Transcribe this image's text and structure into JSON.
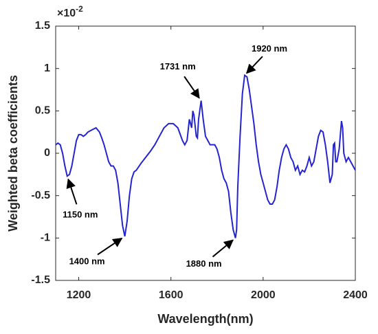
{
  "chart_data": {
    "type": "line",
    "xlabel": "Wavelength(nm)",
    "ylabel": "Weighted beta coefficients",
    "multiplier_base": "×10",
    "multiplier_exponent": "-2",
    "color": "#2323d2",
    "xlim": [
      1100,
      2400
    ],
    "xticks": [
      1200,
      1600,
      2000,
      2400
    ],
    "ylim": [
      -1.5,
      1.5
    ],
    "yticks": [
      -1.5,
      -1,
      -0.5,
      0,
      0.5,
      1,
      1.5
    ],
    "x": [
      1100,
      1110,
      1120,
      1130,
      1140,
      1150,
      1160,
      1170,
      1180,
      1190,
      1200,
      1210,
      1220,
      1230,
      1240,
      1260,
      1275,
      1290,
      1300,
      1310,
      1320,
      1330,
      1340,
      1350,
      1360,
      1370,
      1380,
      1390,
      1400,
      1410,
      1420,
      1430,
      1440,
      1450,
      1470,
      1490,
      1510,
      1530,
      1550,
      1570,
      1590,
      1610,
      1630,
      1650,
      1660,
      1670,
      1680,
      1690,
      1695,
      1700,
      1710,
      1715,
      1720,
      1731,
      1740,
      1750,
      1760,
      1770,
      1780,
      1790,
      1800,
      1810,
      1820,
      1830,
      1840,
      1850,
      1860,
      1870,
      1880,
      1885,
      1890,
      1900,
      1910,
      1920,
      1930,
      1940,
      1950,
      1960,
      1970,
      1980,
      1990,
      2000,
      2010,
      2020,
      2030,
      2040,
      2050,
      2060,
      2070,
      2080,
      2090,
      2100,
      2110,
      2120,
      2130,
      2140,
      2150,
      2160,
      2170,
      2180,
      2190,
      2200,
      2210,
      2220,
      2230,
      2240,
      2250,
      2260,
      2270,
      2280,
      2290,
      2300,
      2305,
      2310,
      2315,
      2320,
      2330,
      2340,
      2345,
      2350,
      2360,
      2370,
      2380,
      2390,
      2400
    ],
    "values": [
      0.1,
      0.12,
      0.1,
      0.0,
      -0.15,
      -0.27,
      -0.25,
      -0.15,
      0.0,
      0.15,
      0.22,
      0.22,
      0.2,
      0.22,
      0.25,
      0.28,
      0.3,
      0.25,
      0.18,
      0.1,
      0.0,
      -0.1,
      -0.15,
      -0.15,
      -0.2,
      -0.35,
      -0.6,
      -0.85,
      -0.98,
      -0.8,
      -0.5,
      -0.3,
      -0.22,
      -0.2,
      -0.12,
      -0.05,
      0.02,
      0.1,
      0.2,
      0.3,
      0.35,
      0.35,
      0.3,
      0.15,
      0.1,
      0.15,
      0.4,
      0.3,
      0.5,
      0.45,
      0.2,
      0.18,
      0.4,
      0.62,
      0.4,
      0.2,
      0.15,
      0.1,
      0.1,
      0.1,
      0.05,
      -0.05,
      -0.2,
      -0.3,
      -0.35,
      -0.45,
      -0.7,
      -0.9,
      -1.0,
      -0.9,
      -0.4,
      0.2,
      0.7,
      0.92,
      0.9,
      0.75,
      0.55,
      0.35,
      0.1,
      -0.1,
      -0.25,
      -0.35,
      -0.45,
      -0.55,
      -0.6,
      -0.6,
      -0.55,
      -0.4,
      -0.2,
      -0.05,
      0.05,
      0.1,
      0.05,
      -0.05,
      -0.1,
      -0.2,
      -0.15,
      -0.25,
      -0.2,
      -0.22,
      -0.15,
      -0.05,
      -0.15,
      -0.1,
      0.05,
      0.2,
      0.27,
      0.25,
      0.1,
      -0.1,
      -0.35,
      -0.25,
      0.1,
      0.12,
      -0.1,
      -0.1,
      0.05,
      0.38,
      0.3,
      0.0,
      -0.1,
      -0.05,
      -0.1,
      -0.15,
      -0.2
    ],
    "annotations": [
      {
        "label": "1150 nm",
        "x": 1150,
        "y": -0.27
      },
      {
        "label": "1400 nm",
        "x": 1400,
        "y": -0.98
      },
      {
        "label": "1731 nm",
        "x": 1731,
        "y": 0.62
      },
      {
        "label": "1920 nm",
        "x": 1920,
        "y": 0.92
      },
      {
        "label": "1880 nm",
        "x": 1880,
        "y": -1.0
      }
    ]
  }
}
